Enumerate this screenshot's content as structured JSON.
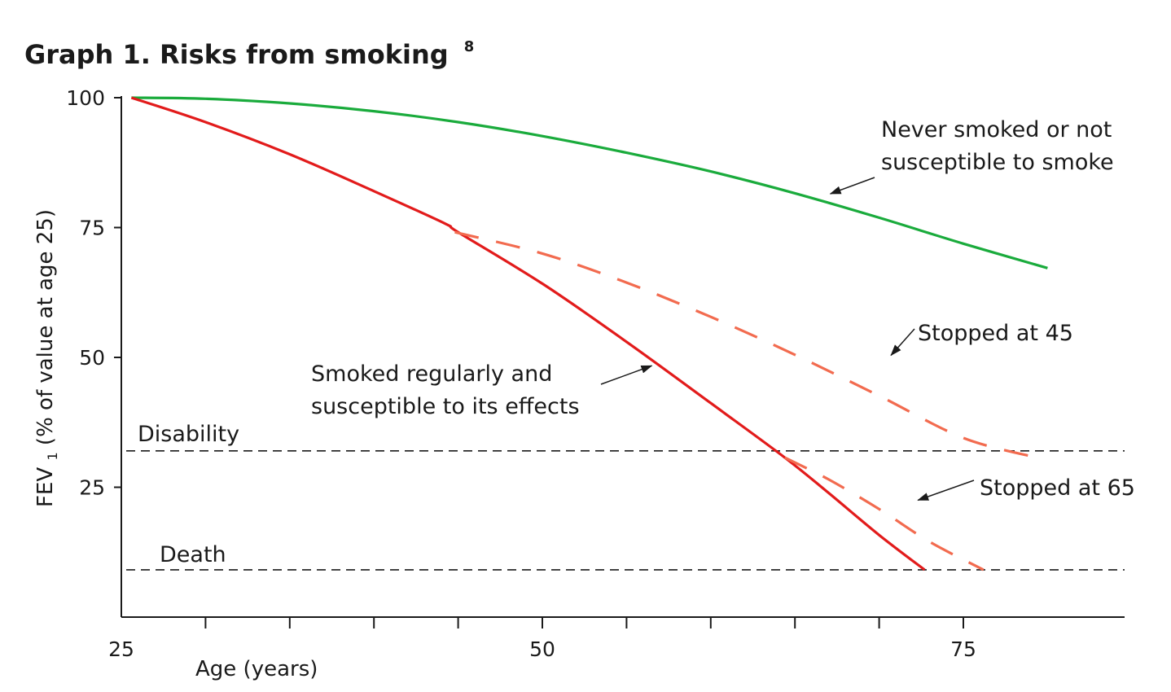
{
  "chart_data": {
    "type": "line",
    "title": "Graph 1. Risks from smoking",
    "title_superscript": "8",
    "xlabel": "Age (years)",
    "ylabel_main": "FEV",
    "ylabel_sub": "1",
    "ylabel_rest": " (% of value at age 25)",
    "xlim": [
      25,
      85
    ],
    "ylim": [
      0,
      100
    ],
    "x_ticks": [
      25,
      30,
      35,
      40,
      45,
      50,
      55,
      60,
      65,
      70,
      75
    ],
    "x_tick_labels": [
      {
        "x": 25,
        "label": "25"
      },
      {
        "x": 50,
        "label": "50"
      },
      {
        "x": 75,
        "label": "75"
      }
    ],
    "y_ticks": [
      25,
      50,
      75,
      100
    ],
    "y_tick_labels": [
      {
        "y": 25,
        "label": "25"
      },
      {
        "y": 50,
        "label": "50"
      },
      {
        "y": 75,
        "label": "75"
      },
      {
        "y": 100,
        "label": "100"
      }
    ],
    "colors": {
      "never": "#1aab3c",
      "smoked": "#e21b1b",
      "stopped": "#f26b4f",
      "axis": "#1a1a1a"
    },
    "series": [
      {
        "key": "never",
        "style": "solid",
        "x": [
          25.6,
          30,
          35,
          40,
          45,
          50,
          55,
          60,
          65,
          70,
          75,
          80
        ],
        "y": [
          100,
          99.8,
          98.9,
          97.4,
          95.3,
          92.6,
          89.4,
          85.8,
          81.6,
          76.9,
          71.9,
          67.2
        ]
      },
      {
        "key": "smoked",
        "style": "solid",
        "x": [
          25.6,
          30,
          35,
          40,
          44.2,
          45,
          50,
          55,
          60,
          64.4,
          67,
          70,
          72.7
        ],
        "y": [
          100,
          95.3,
          89.1,
          82.0,
          75.8,
          74.1,
          64.2,
          53.0,
          41.2,
          30.7,
          23.9,
          15.8,
          9.1
        ]
      },
      {
        "key": "stopped45",
        "style": "dashed",
        "x": [
          44.8,
          50,
          55,
          60,
          65,
          70,
          75,
          79.5
        ],
        "y": [
          74.1,
          70.0,
          64.4,
          57.8,
          50.5,
          42.6,
          34.5,
          30.6
        ]
      },
      {
        "key": "stopped65",
        "style": "dashed",
        "x": [
          64.4,
          67,
          70,
          73,
          76.2
        ],
        "y": [
          30.7,
          26.5,
          20.8,
          14.5,
          9.1
        ]
      }
    ],
    "reference_lines": [
      {
        "key": "disability",
        "label": "Disability",
        "y": 32
      },
      {
        "key": "death",
        "label": "Death",
        "y": 9.1
      }
    ],
    "annotations": [
      {
        "key": "never",
        "lines": [
          "Never smoked or not",
          "susceptible to smoke"
        ],
        "target": {
          "x": 67.1,
          "y": 81.5
        }
      },
      {
        "key": "stopped45",
        "lines": [
          "Stopped at 45"
        ],
        "target": {
          "x": 70.7,
          "y": 50.4
        }
      },
      {
        "key": "stopped65",
        "lines": [
          "Stopped at 65"
        ],
        "target": {
          "x": 72.3,
          "y": 22.5
        }
      },
      {
        "key": "smoked",
        "lines": [
          "Smoked regularly and",
          "susceptible to its effects"
        ],
        "target": {
          "x": 56.5,
          "y": 48.4
        }
      }
    ]
  }
}
